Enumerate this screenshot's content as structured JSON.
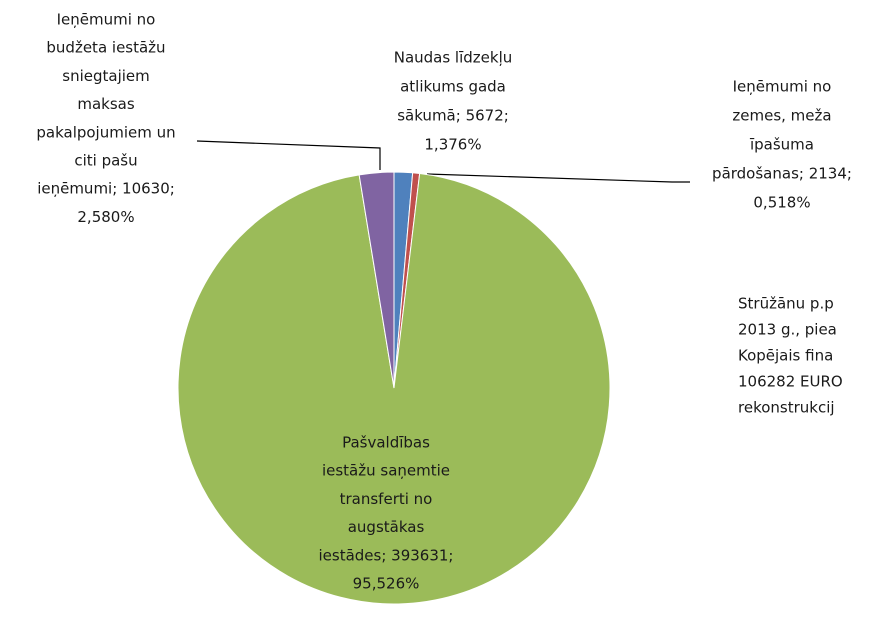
{
  "chart_data": {
    "type": "pie",
    "categories": [
      "Naudas līdzekļu atlikums gada sākumā",
      "Ieņēmumi no zemes, meža īpašuma pārdošanas",
      "Pašvaldības iestāžu saņemtie transferti no augstākas iestādes",
      "Ieņēmumi no budžeta iestāžu sniegtajiem maksas pakalpojumiem un citi pašu ieņēmumi"
    ],
    "values": [
      5672,
      2134,
      393631,
      10630
    ],
    "colors": [
      "#4f81bd",
      "#c0504d",
      "#9bbb59",
      "#8064a2"
    ],
    "labels": [
      [
        "Naudas līdzekļu",
        "atlikums gada",
        "sākumā; 5672;",
        "1,376%"
      ],
      [
        "Ieņēmumi no",
        "zemes, meža",
        "īpašuma",
        "pārdošanas; 2134;",
        "0,518%"
      ],
      [
        "Pašvaldības",
        "iestāžu saņemtie",
        "transferti no",
        "augstākas",
        "iestādes; 393631;",
        "95,526%"
      ],
      [
        "Ieņēmumi no",
        "budžeta iestāžu",
        "sniegtajiem",
        "maksas",
        "pakalpojumiem un",
        "citi pašu",
        "ieņēmumi; 10630;",
        "2,580%"
      ]
    ],
    "annotation": [
      "Strūžānu p.p",
      "2013 g.,  piea",
      "Kopējais fina",
      "106282 EURO",
      "rekonstrukcij"
    ]
  }
}
